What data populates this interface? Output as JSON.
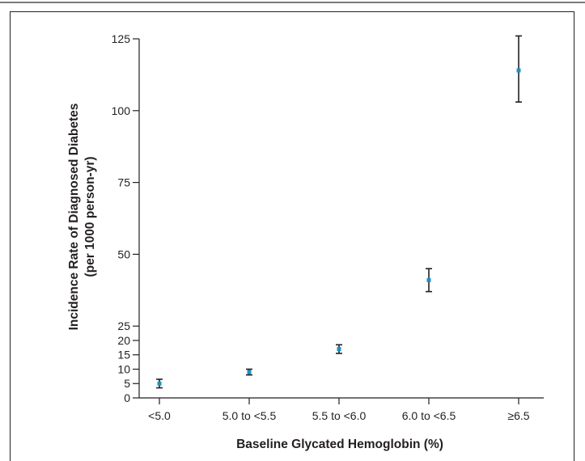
{
  "chart_data": {
    "type": "scatter",
    "title": "",
    "xlabel": "Baseline Glycated Hemoglobin (%)",
    "ylabel_line1": "Incidence Rate of Diagnosed Diabetes",
    "ylabel_line2": "(per 1000 person-yr)",
    "categories": [
      "<5.0",
      "5.0 to <5.5",
      "5.5 to <6.0",
      "6.0 to <6.5",
      "≥6.5"
    ],
    "values": [
      5.0,
      9.0,
      17.0,
      41.0,
      114.0
    ],
    "ci_lower": [
      3.5,
      8.0,
      15.5,
      37.0,
      103.0
    ],
    "ci_upper": [
      6.5,
      10.0,
      18.5,
      45.0,
      126.0
    ],
    "yticks": [
      0,
      5,
      10,
      15,
      20,
      25,
      50,
      75,
      100,
      125
    ],
    "ylim": [
      0,
      125
    ],
    "grid": false,
    "marker_color": "#1f8fc6",
    "errorbar_color": "#231f20"
  }
}
